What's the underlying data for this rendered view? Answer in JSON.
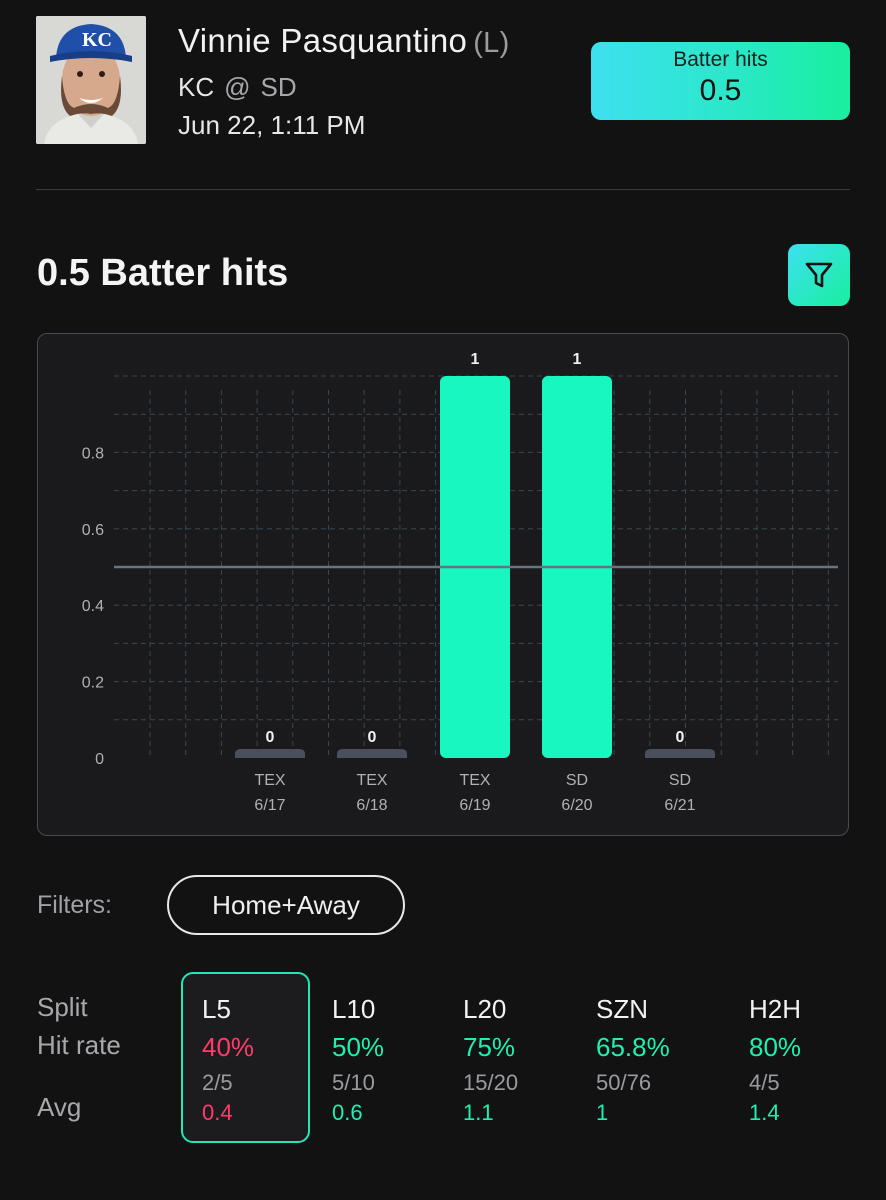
{
  "player": {
    "name": "Vinnie Pasquantino",
    "handedness": "(L)",
    "team": "KC",
    "at": "@",
    "opponent": "SD",
    "game_time": "Jun 22, 1:11 PM",
    "cap_logo": "KC"
  },
  "prop": {
    "label": "Batter hits",
    "value": "0.5"
  },
  "section_title": "0.5 Batter hits",
  "filter_button_icon": "filter-funnel-icon",
  "chart_data": {
    "type": "bar",
    "categories": [
      "TEX 6/17",
      "TEX 6/18",
      "TEX 6/19",
      "SD 6/20",
      "SD 6/21"
    ],
    "opponents": [
      "TEX",
      "TEX",
      "TEX",
      "SD",
      "SD"
    ],
    "dates": [
      "6/17",
      "6/18",
      "6/19",
      "6/20",
      "6/21"
    ],
    "values": [
      0,
      0,
      1,
      1,
      0
    ],
    "data_labels": [
      "0",
      "0",
      "1",
      "1",
      "0"
    ],
    "y_ticks": [
      {
        "v": 0,
        "label": "0"
      },
      {
        "v": 0.2,
        "label": "0.2"
      },
      {
        "v": 0.4,
        "label": "0.4"
      },
      {
        "v": 0.6,
        "label": "0.6"
      },
      {
        "v": 0.8,
        "label": "0.8"
      }
    ],
    "ylim": [
      0,
      1
    ],
    "reference_line": 0.5,
    "grid": true,
    "colors": {
      "hit": "#19f7c1",
      "miss": "#4a4f5c",
      "line": "#6a7480",
      "grid": "#3a4650"
    }
  },
  "filters": {
    "label": "Filters:",
    "chip": "Home+Away"
  },
  "splits": {
    "row_labels": {
      "split": "Split",
      "hit_rate": "Hit rate",
      "avg": "Avg"
    },
    "columns": [
      {
        "name": "L5",
        "hit_rate": "40%",
        "ratio": "2/5",
        "avg": "0.4",
        "status": "red"
      },
      {
        "name": "L10",
        "hit_rate": "50%",
        "ratio": "5/10",
        "avg": "0.6",
        "status": "green"
      },
      {
        "name": "L20",
        "hit_rate": "75%",
        "ratio": "15/20",
        "avg": "1.1",
        "status": "green"
      },
      {
        "name": "SZN",
        "hit_rate": "65.8%",
        "ratio": "50/76",
        "avg": "1",
        "status": "green"
      },
      {
        "name": "H2H",
        "hit_rate": "80%",
        "ratio": "4/5",
        "avg": "1.4",
        "status": "green"
      }
    ]
  }
}
